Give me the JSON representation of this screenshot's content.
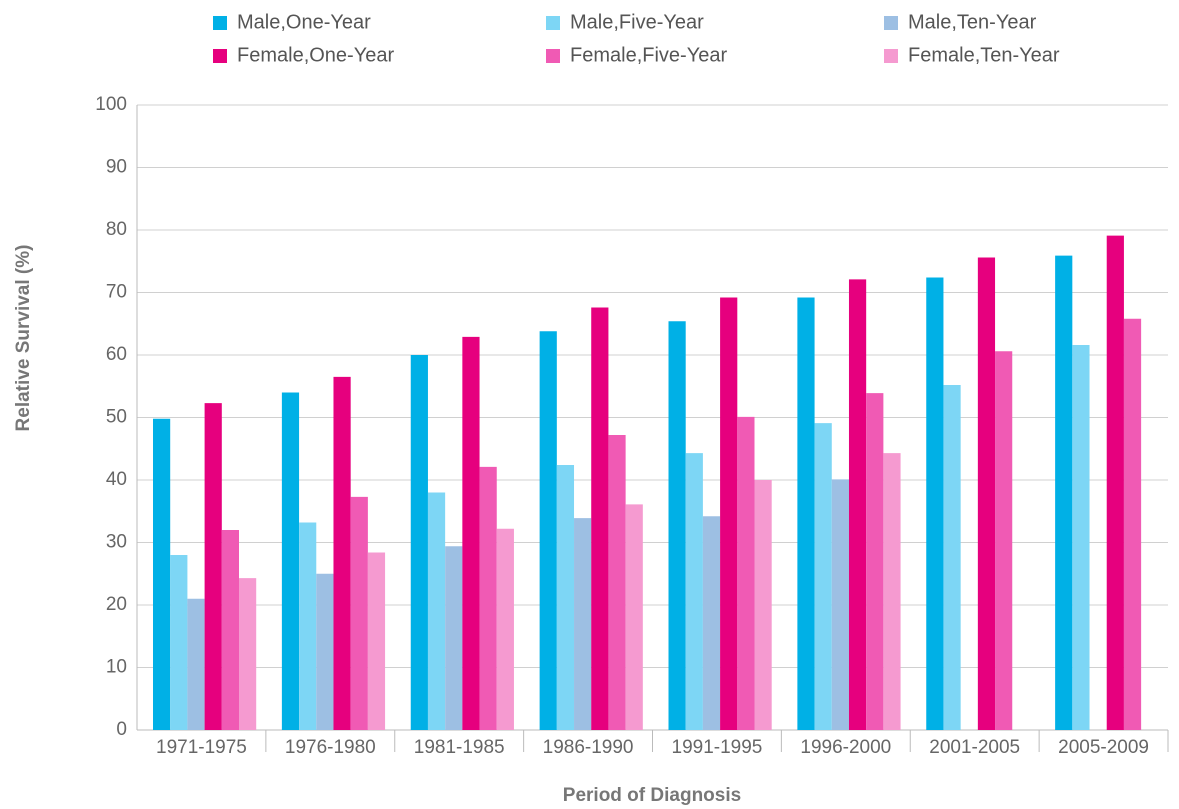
{
  "chart_data": {
    "type": "bar",
    "xlabel": "Period of Diagnosis",
    "ylabel": "Relative Survival (%)",
    "categories": [
      "1971-1975",
      "1976-1980",
      "1981-1985",
      "1986-1990",
      "1991-1995",
      "1996-2000",
      "2001-2005",
      "2005-2009"
    ],
    "series": [
      {
        "name": "Male,One-Year",
        "color": "#00b0e6",
        "values": [
          49.8,
          54,
          60,
          63.8,
          65.4,
          69.2,
          72.4,
          75.9
        ]
      },
      {
        "name": "Male,Five-Year",
        "color": "#7dd6f5",
        "values": [
          28,
          33.2,
          38,
          42.4,
          44.3,
          49.1,
          55.2,
          61.6
        ]
      },
      {
        "name": "Male,Ten-Year",
        "color": "#9dbfe3",
        "values": [
          21,
          25,
          29.4,
          33.9,
          34.2,
          40.1,
          null,
          null
        ]
      },
      {
        "name": "Female,One-Year",
        "color": "#e6007e",
        "values": [
          52.3,
          56.5,
          62.9,
          67.6,
          69.2,
          72.1,
          75.6,
          79.1
        ]
      },
      {
        "name": "Female,Five-Year",
        "color": "#f05ab4",
        "values": [
          32,
          37.3,
          42.1,
          47.2,
          50.1,
          53.9,
          60.6,
          65.8
        ]
      },
      {
        "name": "Female,Ten-Year",
        "color": "#f59ad0",
        "values": [
          24.3,
          28.4,
          32.2,
          36.1,
          40,
          44.3,
          null,
          null
        ]
      }
    ],
    "ylim": [
      0,
      100
    ],
    "yticks": [
      0,
      10,
      20,
      30,
      40,
      50,
      60,
      70,
      80,
      90,
      100
    ],
    "grid": true
  }
}
